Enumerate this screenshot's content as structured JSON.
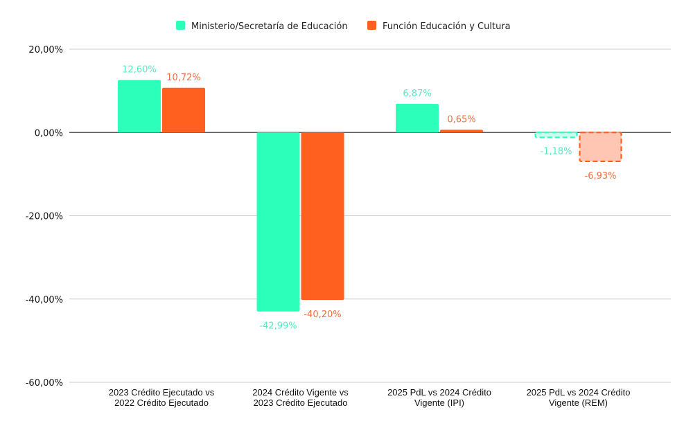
{
  "chart_data": {
    "type": "bar",
    "title": "",
    "xlabel": "",
    "ylabel": "",
    "ylim": [
      -60,
      20
    ],
    "yticks": [
      20,
      0,
      -20,
      -40,
      -60
    ],
    "ytick_labels": [
      "20,00%",
      "0,00%",
      "-20,00%",
      "-40,00%",
      "-60,00%"
    ],
    "grid": true,
    "legend_position": "top-center",
    "categories": [
      [
        "2023 Crédito Ejecutado vs",
        "2022 Crédito Ejecutado"
      ],
      [
        "2024 Crédito Vigente vs",
        "2023 Crédito Ejecutado"
      ],
      [
        "2025 PdL vs 2024 Crédito",
        "Vigente (IPI)"
      ],
      [
        "2025 PdL vs 2024 Crédito",
        "Vigente (REM)"
      ]
    ],
    "series": [
      {
        "name": "Ministerio/Secretaría de Educación",
        "color": "#2BFFB9",
        "label_color": "#4FEFC0",
        "values": [
          12.6,
          -42.99,
          6.87,
          -1.18
        ],
        "labels": [
          "12,60%",
          "-42,99%",
          "6,87%",
          "-1,18%"
        ]
      },
      {
        "name": "Función Educación y Cultura",
        "color": "#FF5F1F",
        "label_color": "#EE7040",
        "values": [
          10.72,
          -40.2,
          0.65,
          -6.93
        ],
        "labels": [
          "10,72%",
          "-40,20%",
          "0,65%",
          "-6,93%"
        ]
      }
    ],
    "dashed_estimate_category": 3
  }
}
